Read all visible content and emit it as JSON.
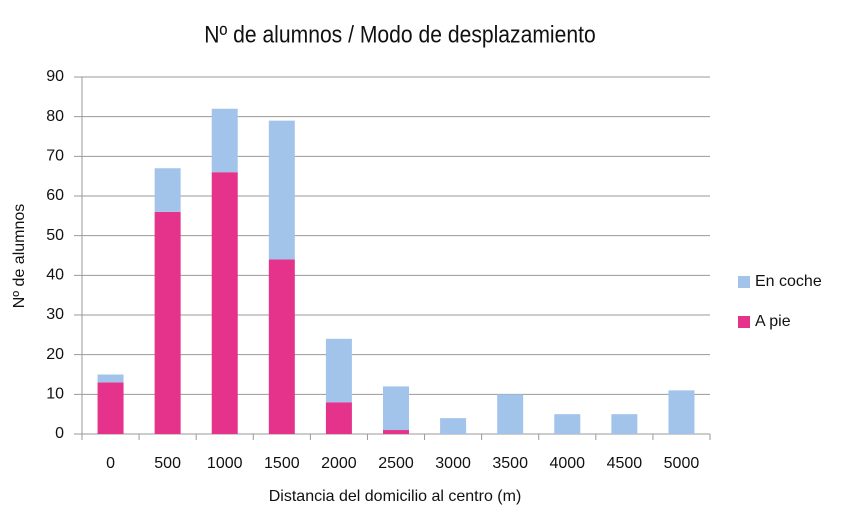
{
  "chart_data": {
    "type": "bar",
    "stacked": true,
    "title": "Nº de alumnos / Modo de desplazamiento",
    "x_label": "Distancia del domicilio al centro (m)",
    "y_label": "Nº de alumnos",
    "categories": [
      "0",
      "500",
      "1000",
      "1500",
      "2000",
      "2500",
      "3000",
      "3500",
      "4000",
      "4500",
      "5000"
    ],
    "series": [
      {
        "name": "A pie",
        "color": "#e5338b",
        "values": [
          13,
          56,
          66,
          44,
          8,
          1,
          0,
          0,
          0,
          0,
          0
        ]
      },
      {
        "name": "En coche",
        "color": "#a3c4ea",
        "values": [
          2,
          11,
          16,
          35,
          16,
          11,
          4,
          10,
          5,
          5,
          11
        ]
      }
    ],
    "ylim": [
      0,
      90
    ],
    "yticks": [
      0,
      10,
      20,
      30,
      40,
      50,
      60,
      70,
      80,
      90
    ],
    "grid": true,
    "legend": "right"
  }
}
